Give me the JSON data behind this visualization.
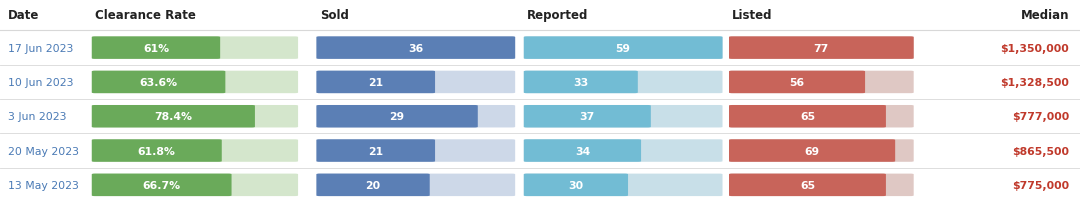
{
  "headers": [
    "Date",
    "Clearance Rate",
    "Sold",
    "Reported",
    "Listed",
    "Median"
  ],
  "rows": [
    {
      "date": "17 Jun 2023",
      "clearance_rate": 61.0,
      "clearance_label": "61%",
      "sold": 36,
      "reported": 59,
      "listed": 77,
      "median": "$1,350,000"
    },
    {
      "date": "10 Jun 2023",
      "clearance_rate": 63.6,
      "clearance_label": "63.6%",
      "sold": 21,
      "reported": 33,
      "listed": 56,
      "median": "$1,328,500"
    },
    {
      "date": "3 Jun 2023",
      "clearance_rate": 78.4,
      "clearance_label": "78.4%",
      "sold": 29,
      "reported": 37,
      "listed": 65,
      "median": "$777,000"
    },
    {
      "date": "20 May 2023",
      "clearance_rate": 61.8,
      "clearance_label": "61.8%",
      "sold": 21,
      "reported": 34,
      "listed": 69,
      "median": "$865,500"
    },
    {
      "date": "13 May 2023",
      "clearance_rate": 66.7,
      "clearance_label": "66.7%",
      "sold": 20,
      "reported": 30,
      "listed": 65,
      "median": "$775,000"
    }
  ],
  "colors": {
    "green": "#6aaa5a",
    "green_bg": "#d4e6cc",
    "blue": "#5b7fb5",
    "blue_bg": "#cdd8e8",
    "light_blue": "#72bcd4",
    "light_blue_bg": "#c8dfe8",
    "red": "#c8645a",
    "red_bg": "#dfc8c4",
    "median_color": "#c0392b",
    "header_bg": "#ffffff",
    "separator": "#d8d8d8",
    "date_color": "#4a7ab5",
    "header_text": "#222222"
  },
  "sold_max": 36,
  "reported_max": 59,
  "listed_max": 77,
  "clearance_max": 100
}
